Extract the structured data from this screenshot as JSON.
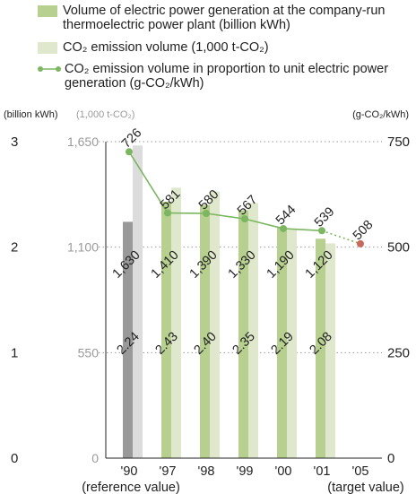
{
  "legend": {
    "generation": "Volume of electric power generation at the company-run thermoelectric power plant (billion kWh)",
    "emission": "CO₂ emission volume (1,000 t-CO₂)",
    "intensity": "CO₂ emission volume in proportion to unit electric power generation (g-CO₂/kWh)"
  },
  "axis_units": {
    "generation": "(billion kWh)",
    "emission": "(1,000 t-CO₂)",
    "intensity": "(g-CO₂/kWh)"
  },
  "colors": {
    "generation_bar": "#b7d08f",
    "generation_bar_reference": "#999999",
    "emission_bar": "#dfe8cc",
    "emission_bar_reference": "#dcdcdc",
    "intensity_line": "#7cb661",
    "target_point": "#c9685d",
    "emission_axis_text": "#9a9a9a"
  },
  "chart_data": {
    "type": "bar",
    "categories": [
      "'90",
      "'97",
      "'98",
      "'99",
      "'00",
      "'01",
      "'05"
    ],
    "category_notes": {
      "'90": "(reference value)",
      "'05": "(target value)"
    },
    "series": [
      {
        "name": "Volume of electric power generation at the company-run thermoelectric power plant (billion kWh)",
        "type": "bar",
        "axis": "left",
        "values": [
          2.24,
          2.43,
          2.4,
          2.35,
          2.19,
          2.08,
          null
        ],
        "labels": [
          "2.24",
          "2.43",
          "2.40",
          "2.35",
          "2.19",
          "2.08",
          ""
        ]
      },
      {
        "name": "CO₂ emission volume (1,000 t-CO₂)",
        "type": "bar",
        "axis": "left2",
        "values": [
          1630,
          1410,
          1390,
          1330,
          1190,
          1120,
          null
        ],
        "labels": [
          "1,630",
          "1,410",
          "1,390",
          "1,330",
          "1,190",
          "1,120",
          ""
        ]
      },
      {
        "name": "CO₂ emission volume in proportion to unit electric power generation (g-CO₂/kWh)",
        "type": "line",
        "axis": "right",
        "values": [
          726,
          581,
          580,
          567,
          544,
          539,
          508
        ],
        "labels": [
          "726",
          "581",
          "580",
          "567",
          "544",
          "539",
          "508"
        ]
      }
    ],
    "axes": {
      "left": {
        "ylim": [
          0,
          3
        ],
        "ticks": [
          "0",
          "1",
          "2",
          "3"
        ]
      },
      "left2": {
        "ylim": [
          0,
          1650
        ],
        "ticks": [
          "0",
          "550",
          "1,100",
          "1,650"
        ]
      },
      "right": {
        "ylim": [
          0,
          750
        ],
        "ticks": [
          "0",
          "250",
          "500",
          "750"
        ]
      }
    },
    "grid": "dotted-horizontal"
  }
}
